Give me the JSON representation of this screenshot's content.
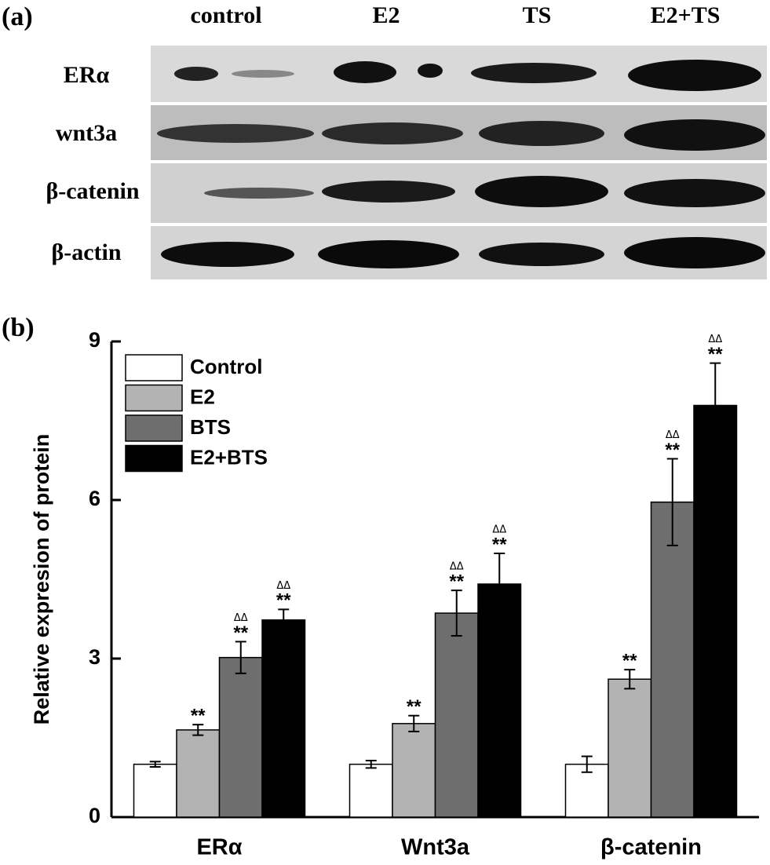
{
  "panel_a": {
    "label": "(a)",
    "lanes": [
      "control",
      "E2",
      "TS",
      "E2+TS"
    ],
    "rows": [
      "ERα",
      "wnt3a",
      "β-catenin",
      "β-actin"
    ]
  },
  "chart_data": {
    "type": "bar",
    "panel_label": "(b)",
    "ylabel": "Relative expresion of protein",
    "categories": [
      "ERα",
      "Wnt3a",
      "β-catenin"
    ],
    "series": [
      {
        "name": "Control",
        "color": "#ffffff",
        "values": [
          1.0,
          1.0,
          1.0
        ],
        "errors": [
          0.05,
          0.07,
          0.15
        ]
      },
      {
        "name": "E2",
        "color": "#b3b3b3",
        "values": [
          1.65,
          1.77,
          2.61
        ],
        "errors": [
          0.1,
          0.15,
          0.18
        ],
        "stars": [
          "**",
          "**",
          "**"
        ]
      },
      {
        "name": "BTS",
        "color": "#6e6e6e",
        "values": [
          3.02,
          3.86,
          5.96
        ],
        "errors": [
          0.3,
          0.43,
          0.82
        ],
        "stars": [
          "**",
          "**",
          "**"
        ],
        "deltas": [
          "ΔΔ",
          "ΔΔ",
          "ΔΔ"
        ]
      },
      {
        "name": "E2+BTS",
        "color": "#000000",
        "values": [
          3.73,
          4.41,
          7.79
        ],
        "errors": [
          0.2,
          0.58,
          0.8
        ],
        "stars": [
          "**",
          "**",
          "**"
        ],
        "deltas": [
          "ΔΔ",
          "ΔΔ",
          "ΔΔ"
        ]
      }
    ],
    "ylim": [
      0,
      9
    ],
    "yticks": [
      0,
      3,
      6,
      9
    ],
    "legend": "upper left"
  }
}
